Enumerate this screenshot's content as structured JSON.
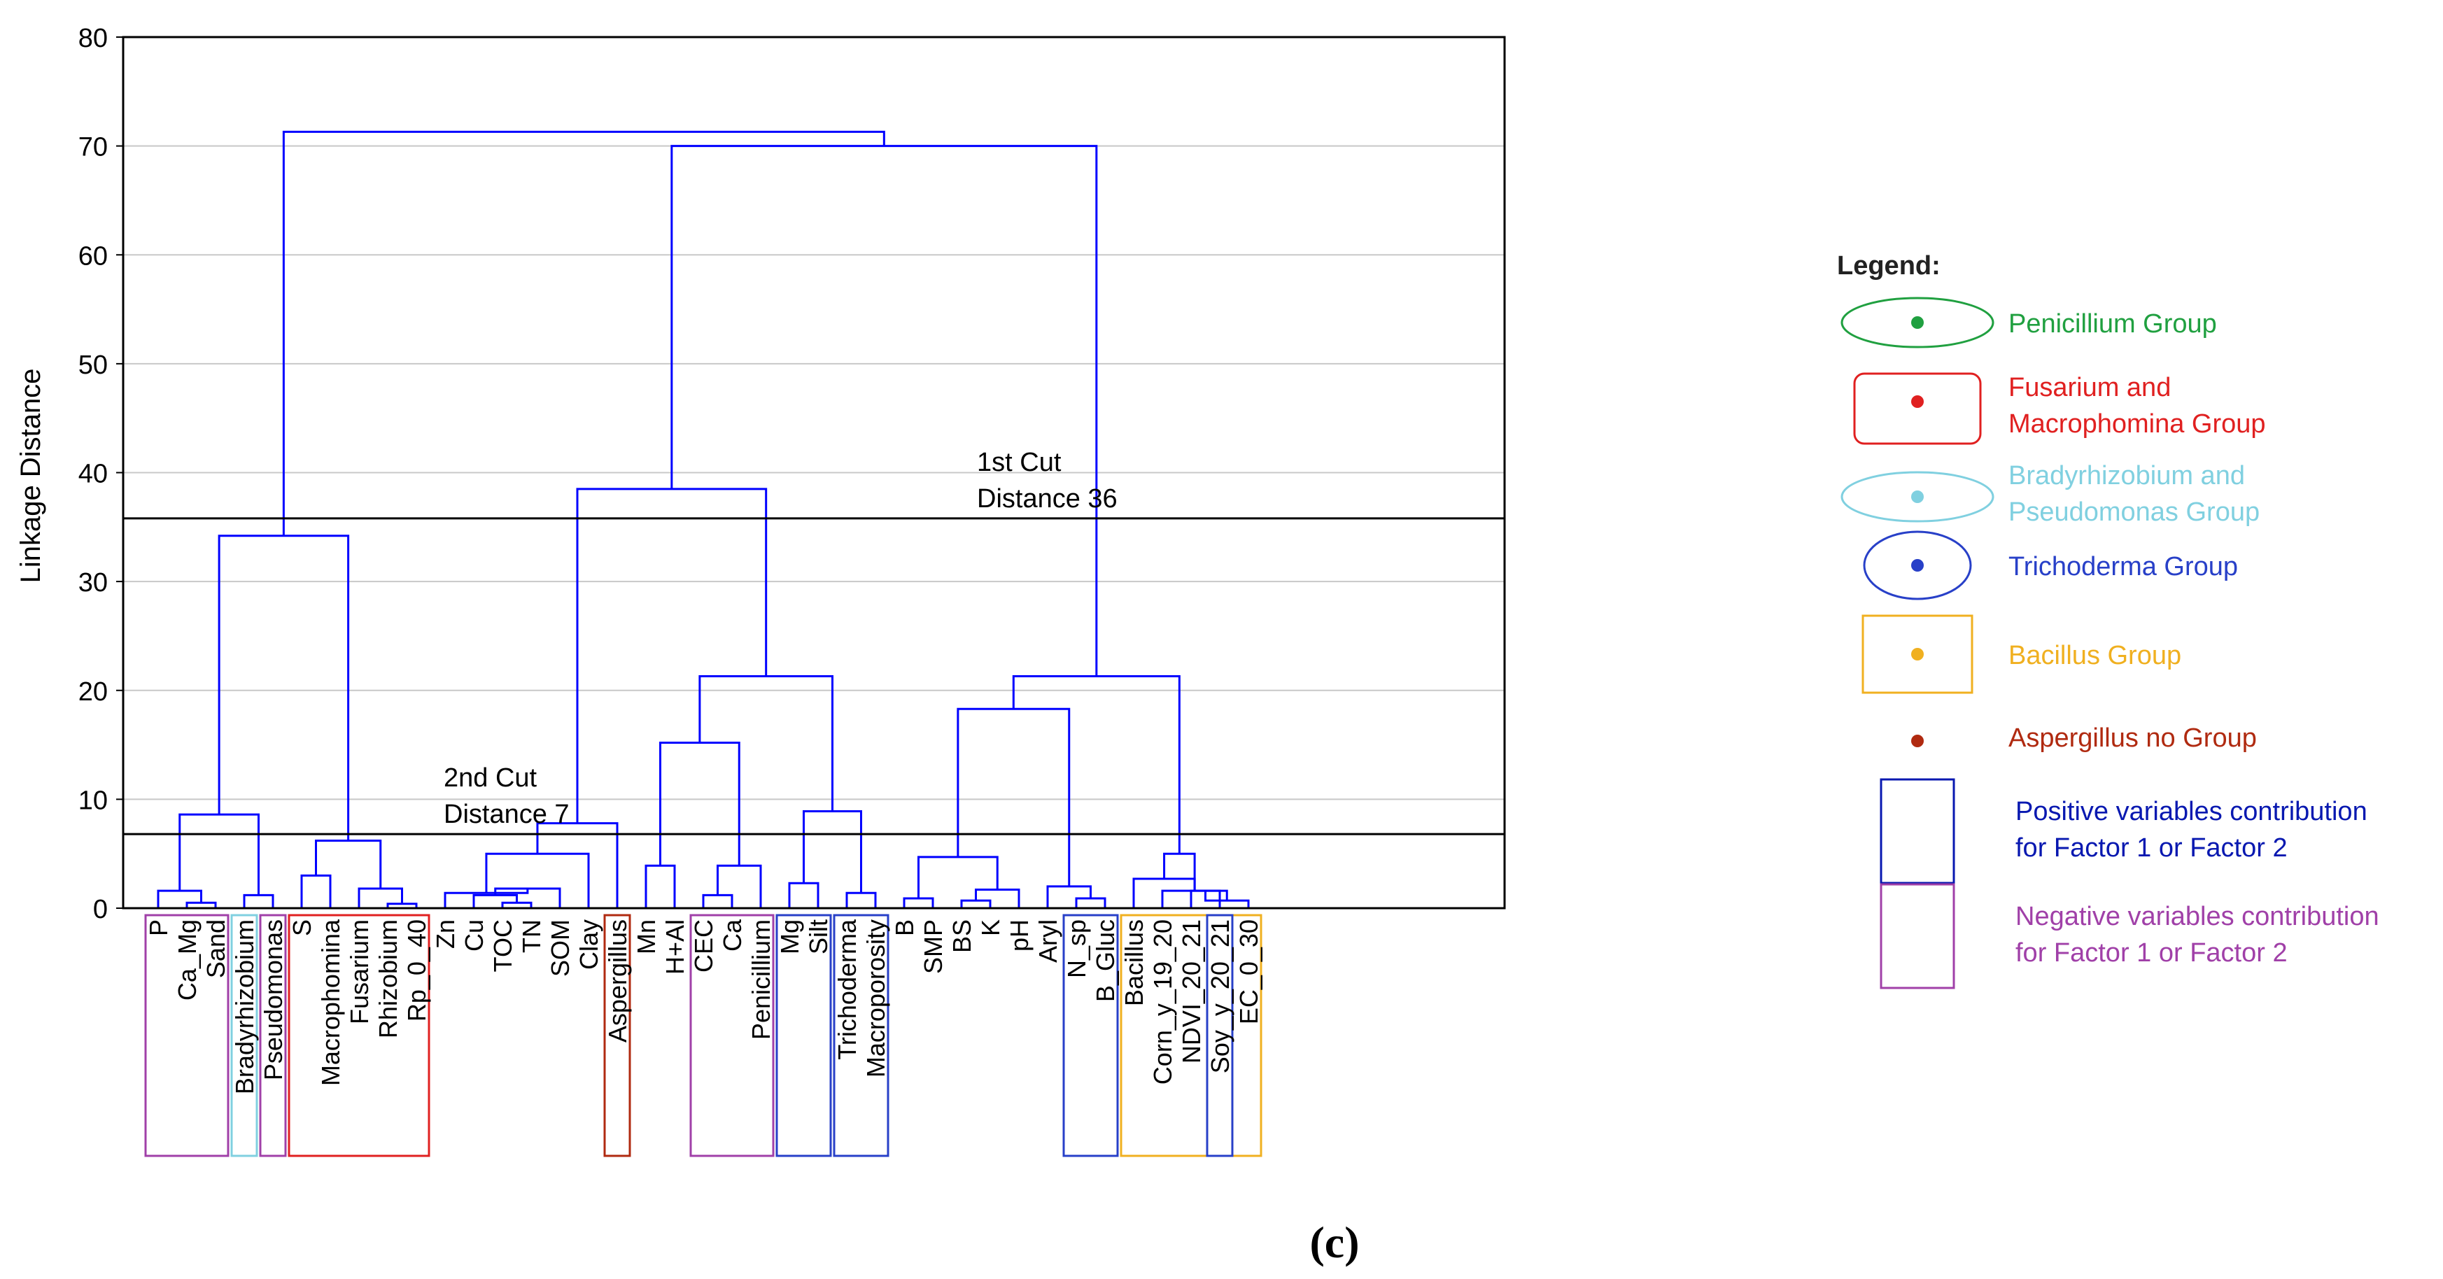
{
  "chart_data": {
    "type": "dendrogram",
    "ylabel": "Linkage Distance",
    "ylim": [
      0,
      80
    ],
    "yticks": [
      0,
      10,
      20,
      30,
      40,
      50,
      60,
      70,
      80
    ],
    "grid": true,
    "leaves": [
      "P",
      "Ca_Mg",
      "Sand",
      "Bradyrhizobium",
      "Pseudomonas",
      "S",
      "Macrophomina",
      "Fusarium",
      "Rhizobium",
      "Rp_0_40",
      "Zn",
      "Cu",
      "TOC",
      "TN",
      "SOM",
      "Clay",
      "Aspergillus",
      "Mn",
      "H+Al",
      "CEC",
      "Ca",
      "Penicillium",
      "Mg",
      "Silt",
      "Trichoderma",
      "Macroporosity",
      "B",
      "SMP",
      "BS",
      "K",
      "pH",
      "Aryl",
      "N_sp",
      "B_Gluc",
      "Bacillus",
      "Corn_y_19_20",
      "NDVI_20_21",
      "Soy_y_20_21",
      "EC_0_30"
    ],
    "merges": [
      {
        "a": "L:1",
        "b": "L:2",
        "h": 0.5
      },
      {
        "a": "L:0",
        "b": "M:0",
        "h": 1.6
      },
      {
        "a": "L:3",
        "b": "L:4",
        "h": 1.2
      },
      {
        "a": "M:1",
        "b": "M:2",
        "h": 8.6
      },
      {
        "a": "L:5",
        "b": "L:6",
        "h": 3.0
      },
      {
        "a": "L:8",
        "b": "L:9",
        "h": 0.4
      },
      {
        "a": "L:7",
        "b": "M:5",
        "h": 1.8
      },
      {
        "a": "M:4",
        "b": "M:6",
        "h": 6.2
      },
      {
        "a": "M:3",
        "b": "M:7",
        "h": 34.2
      },
      {
        "a": "L:12",
        "b": "L:13",
        "h": 0.5
      },
      {
        "a": "L:11",
        "b": "M:9",
        "h": 1.2
      },
      {
        "a": "M:10",
        "b": "L:14",
        "h": 1.8
      },
      {
        "a": "L:10",
        "b": "M:11",
        "h": 1.4
      },
      {
        "a": "M:12",
        "b": "L:15",
        "h": 5.0
      },
      {
        "a": "M:13",
        "b": "L:16",
        "h": 7.8
      },
      {
        "a": "L:17",
        "b": "L:18",
        "h": 3.9
      },
      {
        "a": "L:19",
        "b": "L:20",
        "h": 1.2
      },
      {
        "a": "M:16",
        "b": "L:21",
        "h": 3.9
      },
      {
        "a": "M:15",
        "b": "M:17",
        "h": 15.2
      },
      {
        "a": "L:22",
        "b": "L:23",
        "h": 2.3
      },
      {
        "a": "L:24",
        "b": "L:25",
        "h": 1.4
      },
      {
        "a": "M:19",
        "b": "M:20",
        "h": 8.9
      },
      {
        "a": "M:18",
        "b": "M:21",
        "h": 21.3
      },
      {
        "a": "M:14",
        "b": "M:22",
        "h": 38.5
      },
      {
        "a": "L:26",
        "b": "L:27",
        "h": 0.9
      },
      {
        "a": "L:28",
        "b": "L:29",
        "h": 0.7
      },
      {
        "a": "M:25",
        "b": "L:30",
        "h": 1.7
      },
      {
        "a": "M:24",
        "b": "M:26",
        "h": 4.7
      },
      {
        "a": "L:32",
        "b": "L:33",
        "h": 0.9
      },
      {
        "a": "L:31",
        "b": "M:28",
        "h": 2.0
      },
      {
        "a": "M:27",
        "b": "M:29",
        "h": 18.3
      },
      {
        "a": "L:36",
        "b": "L:37",
        "h": 1.6
      },
      {
        "a": "M:31",
        "b": "L:38",
        "h": 0.7
      },
      {
        "a": "L:35",
        "b": "M:32",
        "h": 1.6
      },
      {
        "a": "L:34",
        "b": "M:33",
        "h": 2.7
      },
      {
        "a": "M:34",
        "b": "M:33",
        "h": 5.0
      },
      {
        "a": "M:30",
        "b": "M:35",
        "h": 21.3
      },
      {
        "a": "M:23",
        "b": "M:36",
        "h": 70.0
      },
      {
        "a": "M:8",
        "b": "M:37",
        "h": 71.3
      }
    ],
    "cuts": [
      {
        "value": 35.8,
        "label_line1": "1st Cut",
        "label_line2": "Distance 36"
      },
      {
        "value": 6.8,
        "label_line1": "2nd Cut",
        "label_line2": "Distance 7"
      }
    ],
    "group_boxes": [
      {
        "from": 0,
        "to": 2,
        "color": "#a040a8"
      },
      {
        "from": 3,
        "to": 3,
        "color": "#80d0e0"
      },
      {
        "from": 4,
        "to": 4,
        "color": "#a040a8"
      },
      {
        "from": 5,
        "to": 9,
        "color": "#e02020"
      },
      {
        "from": 16,
        "to": 16,
        "color": "#b02a10"
      },
      {
        "from": 19,
        "to": 21,
        "color": "#20a040"
      },
      {
        "from": 19,
        "to": 21,
        "color": "#a040a8"
      },
      {
        "from": 22,
        "to": 23,
        "color": "#2840c8"
      },
      {
        "from": 24,
        "to": 25,
        "color": "#2840c8"
      },
      {
        "from": 32,
        "to": 33,
        "color": "#2840c8"
      },
      {
        "from": 34,
        "to": 38,
        "color": "#f0b020"
      },
      {
        "from": 37,
        "to": 37,
        "color": "#2840c8"
      }
    ],
    "legend": {
      "title": "Legend:",
      "items": [
        {
          "label_line1": "Penicillium Group",
          "label_line2": "",
          "shape": "ellipse",
          "color": "#20a040"
        },
        {
          "label_line1": "Fusarium and",
          "label_line2": "Macrophomina Group",
          "shape": "rounded-rect",
          "color": "#e02020"
        },
        {
          "label_line1": "Bradyrhizobium and",
          "label_line2": "Pseudomonas Group",
          "shape": "ellipse",
          "color": "#80d0e0"
        },
        {
          "label_line1": "Trichoderma Group",
          "label_line2": "",
          "shape": "ellipse",
          "color": "#2840c8"
        },
        {
          "label_line1": "Bacillus Group",
          "label_line2": "",
          "shape": "rect",
          "color": "#f0b020"
        },
        {
          "label_line1": "Aspergillus no Group",
          "label_line2": "",
          "shape": "dot",
          "color": "#b02a10"
        },
        {
          "label_line1": "Positive variables contribution",
          "label_line2": "for Factor 1 or Factor 2",
          "shape": "rect",
          "color": "#0818b0"
        },
        {
          "label_line1": "Negative variables contribution",
          "label_line2": "for Factor 1 or Factor 2",
          "shape": "rect",
          "color": "#a040a8"
        }
      ]
    },
    "panel_label": "(c)",
    "colors": {
      "tree": "#0000ff",
      "axis": "#000000",
      "grid": "#c8c8c8"
    }
  }
}
